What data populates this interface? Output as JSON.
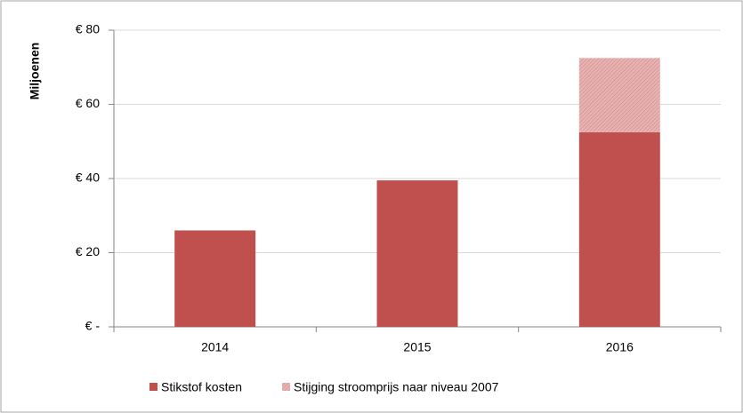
{
  "chart_data": {
    "type": "stacked_bar",
    "y_label": "Miljoenen",
    "categories": [
      "2014",
      "2015",
      "2016"
    ],
    "series": [
      {
        "name": "Stikstof kosten",
        "color": "#c0504d",
        "values": [
          26,
          39.5,
          52.5
        ]
      },
      {
        "name": "Stijging stroomprijs naar niveau 2007",
        "color": "#c0504d",
        "pattern": "hatch",
        "values": [
          null,
          null,
          20
        ]
      }
    ],
    "ylim": [
      0,
      80
    ],
    "yticks": [
      {
        "value": 0,
        "label": "€ -"
      },
      {
        "value": 20,
        "label": "€ 20"
      },
      {
        "value": 40,
        "label": "€ 40"
      },
      {
        "value": 60,
        "label": "€ 60"
      },
      {
        "value": 80,
        "label": "€ 80"
      }
    ],
    "grid": true,
    "legend": "bottom"
  }
}
